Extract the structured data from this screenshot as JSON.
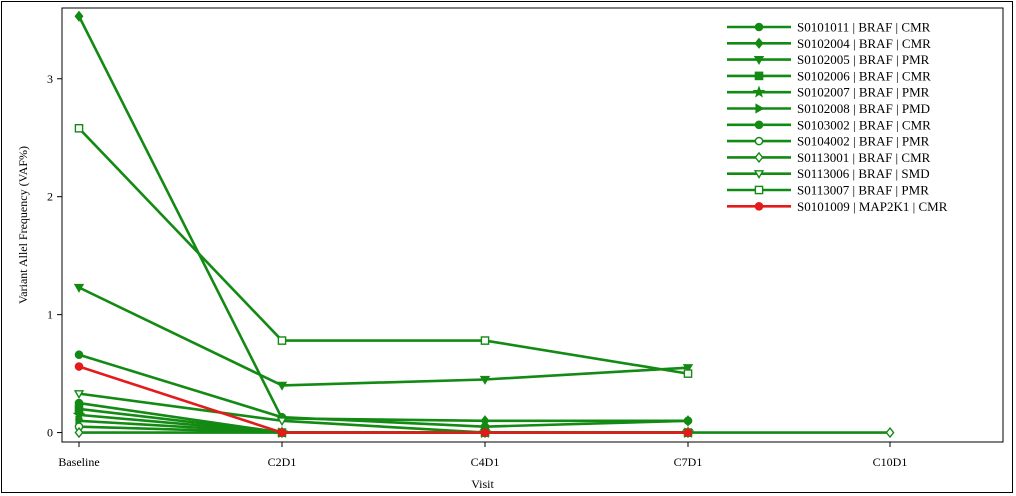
{
  "chart_data": {
    "type": "line",
    "title": "",
    "xlabel": "Visit",
    "ylabel": "Variant Allel Frequency  (VAF%)",
    "categories": [
      "Baseline",
      "C2D1",
      "C4D1",
      "C7D1",
      "C10D1"
    ],
    "ylim": [
      -0.08,
      3.6
    ],
    "yticks": [
      0,
      1,
      2,
      3
    ],
    "grid": false,
    "legend_position": "top-right",
    "colors": {
      "braf": "#138a13",
      "map2k1": "#e31b1b"
    },
    "series": [
      {
        "name": "S0101011 | BRAF | CMR",
        "marker": "circle-filled",
        "color": "#138a13",
        "values": [
          0.25,
          0.0,
          0.0,
          0.0,
          null
        ]
      },
      {
        "name": "S0102004 | BRAF | CMR",
        "marker": "diamond-filled",
        "color": "#138a13",
        "values": [
          3.53,
          0.12,
          0.1,
          0.1,
          null
        ]
      },
      {
        "name": "S0102005 | BRAF | PMR",
        "marker": "triangle-down-filled",
        "color": "#138a13",
        "values": [
          1.23,
          0.4,
          0.45,
          0.55,
          null
        ]
      },
      {
        "name": "S0102006 | BRAF | CMR",
        "marker": "square-filled",
        "color": "#138a13",
        "values": [
          0.2,
          0.0,
          0.0,
          0.0,
          null
        ]
      },
      {
        "name": "S0102007 | BRAF | PMR",
        "marker": "star-filled",
        "color": "#138a13",
        "values": [
          0.15,
          0.0,
          0.0,
          0.0,
          null
        ]
      },
      {
        "name": "S0102008 | BRAF | PMD",
        "marker": "triangle-right-filled",
        "color": "#138a13",
        "values": [
          0.1,
          0.0,
          0.0,
          0.0,
          null
        ]
      },
      {
        "name": "S0103002 | BRAF | CMR",
        "marker": "circle-filled",
        "color": "#138a13",
        "values": [
          0.66,
          0.13,
          0.05,
          0.1,
          null
        ]
      },
      {
        "name": "S0104002 | BRAF | PMR",
        "marker": "circle-open",
        "color": "#138a13",
        "values": [
          0.05,
          0.0,
          0.0,
          0.0,
          null
        ]
      },
      {
        "name": "S0113001 | BRAF | CMR",
        "marker": "diamond-open",
        "color": "#138a13",
        "values": [
          0.0,
          0.0,
          0.0,
          0.0,
          0.0
        ]
      },
      {
        "name": "S0113006 | BRAF | SMD",
        "marker": "triangle-down-open",
        "color": "#138a13",
        "values": [
          0.33,
          0.1,
          0.0,
          0.0,
          null
        ]
      },
      {
        "name": "S0113007 | BRAF | PMR",
        "marker": "square-open",
        "color": "#138a13",
        "values": [
          2.58,
          0.78,
          0.78,
          0.5,
          null
        ]
      },
      {
        "name": "S0101009 | MAP2K1 | CMR",
        "marker": "circle-filled",
        "color": "#e31b1b",
        "values": [
          0.56,
          0.0,
          0.0,
          0.0,
          null
        ]
      }
    ]
  }
}
